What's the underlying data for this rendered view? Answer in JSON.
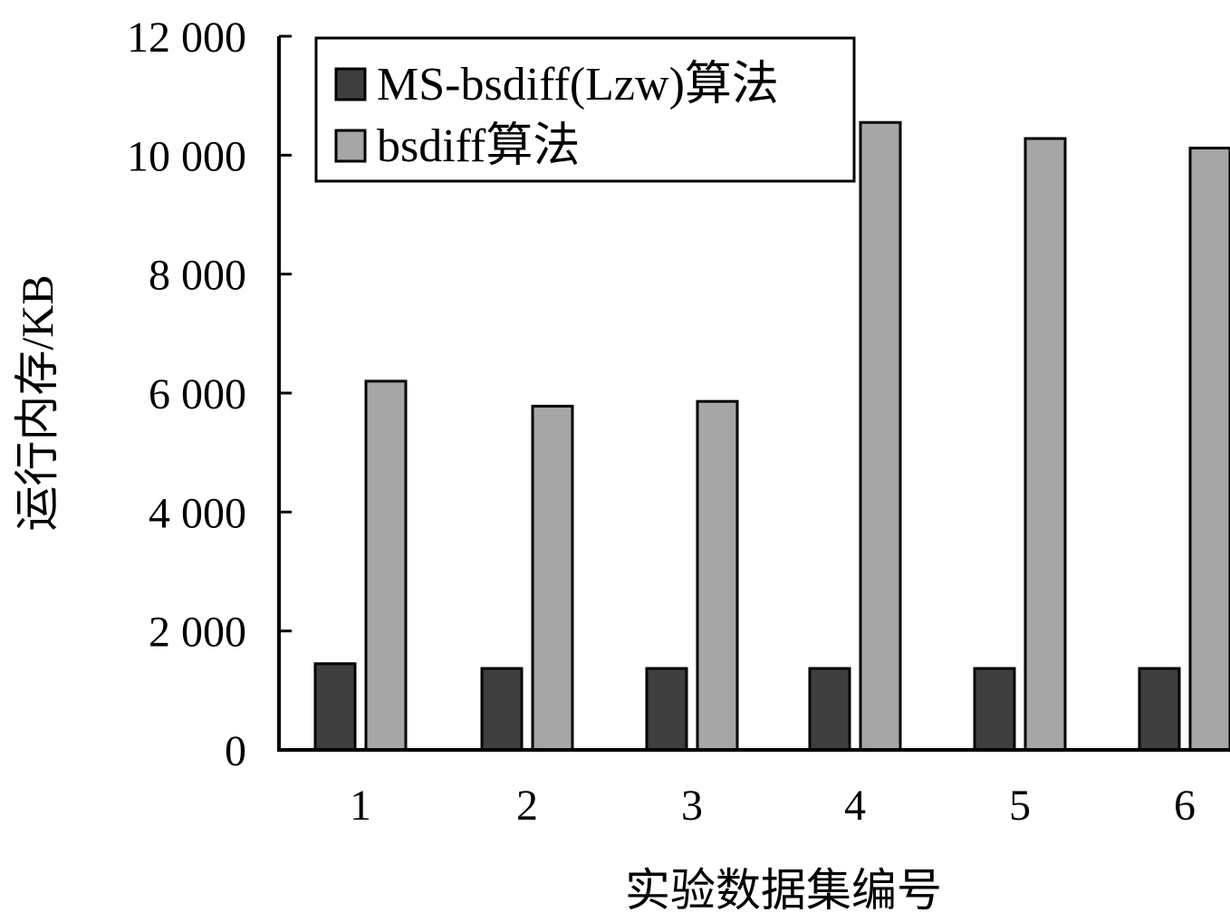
{
  "chart_data": {
    "type": "bar",
    "xlabel": "实验数据集编号",
    "ylabel": "运行内存/KB",
    "categories": [
      "1",
      "2",
      "3",
      "4",
      "5",
      "6"
    ],
    "ylim": [
      0,
      12000
    ],
    "yticks": [
      0,
      2000,
      4000,
      6000,
      8000,
      10000,
      12000
    ],
    "ytick_labels": [
      "0",
      "2 000",
      "4 000",
      "6 000",
      "8 000",
      "10 000",
      "12 000"
    ],
    "legend_position": "top-left",
    "grid": false,
    "series": [
      {
        "name": "MS-bsdiff(Lzw)算法",
        "color": "#3f3f3f",
        "values": [
          1450,
          1370,
          1370,
          1370,
          1370,
          1370
        ]
      },
      {
        "name": "bsdiff算法",
        "color": "#a6a6a6",
        "values": [
          6200,
          5780,
          5860,
          10550,
          10280,
          10120
        ]
      }
    ]
  }
}
